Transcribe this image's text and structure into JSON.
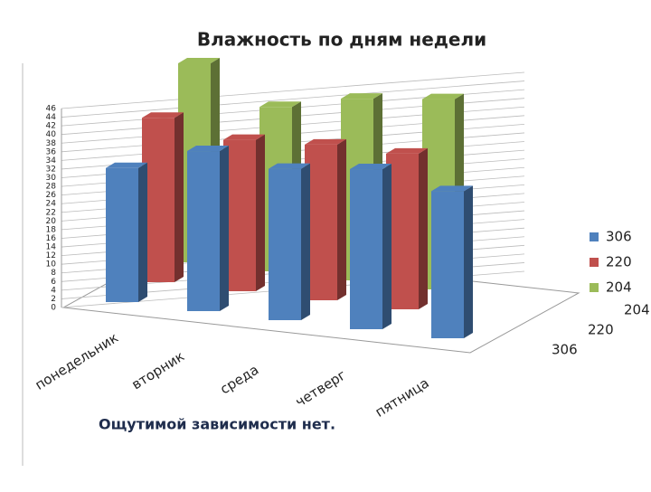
{
  "chart_data": {
    "type": "bar3d",
    "title": "Влажность по дням недели",
    "categories": [
      "понедельник",
      "вторник",
      "среда",
      "четверг",
      "пятница"
    ],
    "series": [
      {
        "name": "306",
        "color": "#4f81bd",
        "values": [
          31,
          37,
          35,
          37,
          34
        ]
      },
      {
        "name": "220",
        "color": "#c0504d",
        "values": [
          38,
          35,
          36,
          36,
          null
        ]
      },
      {
        "name": "204",
        "color": "#9bbb59",
        "values": [
          46,
          38,
          42,
          44,
          null
        ]
      }
    ],
    "ylim": [
      0,
      46
    ],
    "yticks": [
      0,
      2,
      4,
      6,
      8,
      10,
      12,
      14,
      16,
      18,
      20,
      22,
      24,
      26,
      28,
      30,
      32,
      34,
      36,
      38,
      40,
      42,
      44,
      46
    ],
    "grid": true,
    "legend": "right",
    "annotation": "Ощутимой зависимости нет."
  }
}
